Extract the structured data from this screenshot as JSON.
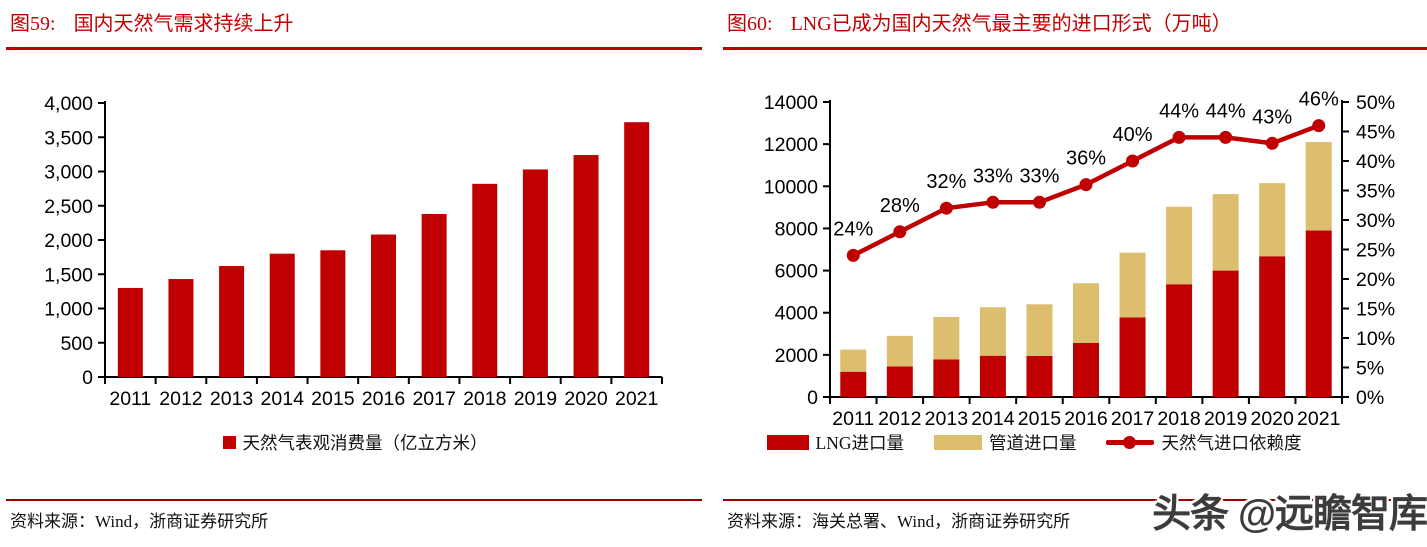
{
  "colors": {
    "bar_red": "#C00000",
    "bar_tan": "#DCBE6E",
    "line_red": "#C00000",
    "title_red": "#C30000",
    "title_rule": "#C00000",
    "bottom_rule": "#990000",
    "axis_black": "#000000",
    "watermark_gray": "#3C3C3C"
  },
  "left_panel": {
    "figure_label": "图59:",
    "title": "国内天然气需求持续上升",
    "legend": [
      {
        "label": "天然气表观消费量（亿立方米）",
        "swatch": "red-square"
      }
    ],
    "source_label": "资料来源：",
    "source_text": "Wind，浙商证券研究所"
  },
  "right_panel": {
    "figure_label": "图60:",
    "title": "LNG已成为国内天然气最主要的进口形式（万吨）",
    "legend": [
      {
        "label": "LNG进口量",
        "swatch": "red-bar"
      },
      {
        "label": "管道进口量",
        "swatch": "tan-bar"
      },
      {
        "label": "天然气进口依赖度",
        "swatch": "red-line-dot"
      }
    ],
    "source_label": "资料来源：",
    "source_text": "海关总署、Wind，浙商证券研究所"
  },
  "watermark": "头条 @远瞻智库",
  "chart_data": [
    {
      "type": "bar",
      "title": "国内天然气需求持续上升",
      "categories": [
        "2011",
        "2012",
        "2013",
        "2014",
        "2015",
        "2016",
        "2017",
        "2018",
        "2019",
        "2020",
        "2021"
      ],
      "series": [
        {
          "name": "天然气表观消费量（亿立方米）",
          "color": "#C00000",
          "values": [
            1300,
            1430,
            1620,
            1800,
            1850,
            2080,
            2380,
            2820,
            3030,
            3240,
            3720
          ]
        }
      ],
      "xlabel": "",
      "ylabel": "",
      "ylim": [
        0,
        4000
      ],
      "yticks": [
        {
          "v": 0,
          "label": "0"
        },
        {
          "v": 500,
          "label": "500"
        },
        {
          "v": 1000,
          "label": "1,000"
        },
        {
          "v": 1500,
          "label": "1,500"
        },
        {
          "v": 2000,
          "label": "2,000"
        },
        {
          "v": 2500,
          "label": "2,500"
        },
        {
          "v": 3000,
          "label": "3,000"
        },
        {
          "v": 3500,
          "label": "3,500"
        },
        {
          "v": 4000,
          "label": "4,000"
        }
      ],
      "grid": false,
      "legend_position": "bottom"
    },
    {
      "type": "bar+line",
      "title": "LNG已成为国内天然气最主要的进口形式（万吨）",
      "categories": [
        "2011",
        "2012",
        "2013",
        "2014",
        "2015",
        "2016",
        "2017",
        "2018",
        "2019",
        "2020",
        "2021"
      ],
      "series": [
        {
          "name": "LNG进口量",
          "type": "bar",
          "stack": "imports",
          "color": "#C00000",
          "values": [
            1200,
            1450,
            1780,
            1960,
            1950,
            2570,
            3780,
            5350,
            6000,
            6680,
            7900
          ]
        },
        {
          "name": "管道进口量",
          "type": "bar",
          "stack": "imports",
          "color": "#DCBE6E",
          "values": [
            1050,
            1450,
            2020,
            2300,
            2450,
            2830,
            3070,
            3680,
            3630,
            3470,
            4200
          ]
        },
        {
          "name": "天然气进口依赖度",
          "type": "line",
          "axis": "right",
          "color": "#C00000",
          "values": [
            24,
            28,
            32,
            33,
            33,
            36,
            40,
            44,
            44,
            43,
            46
          ],
          "point_labels": [
            "24%",
            "28%",
            "32%",
            "33%",
            "33%",
            "36%",
            "40%",
            "44%",
            "44%",
            "43%",
            "46%"
          ]
        }
      ],
      "ylim_left": [
        0,
        14000
      ],
      "ylim_right": [
        0,
        50
      ],
      "yticks_left": [
        {
          "v": 0,
          "label": "0"
        },
        {
          "v": 2000,
          "label": "2000"
        },
        {
          "v": 4000,
          "label": "4000"
        },
        {
          "v": 6000,
          "label": "6000"
        },
        {
          "v": 8000,
          "label": "8000"
        },
        {
          "v": 10000,
          "label": "10000"
        },
        {
          "v": 12000,
          "label": "12000"
        },
        {
          "v": 14000,
          "label": "14000"
        }
      ],
      "yticks_right": [
        {
          "v": 0,
          "label": "0%"
        },
        {
          "v": 5,
          "label": "5%"
        },
        {
          "v": 10,
          "label": "10%"
        },
        {
          "v": 15,
          "label": "15%"
        },
        {
          "v": 20,
          "label": "20%"
        },
        {
          "v": 25,
          "label": "25%"
        },
        {
          "v": 30,
          "label": "30%"
        },
        {
          "v": 35,
          "label": "35%"
        },
        {
          "v": 40,
          "label": "40%"
        },
        {
          "v": 45,
          "label": "45%"
        },
        {
          "v": 50,
          "label": "50%"
        }
      ],
      "grid": false,
      "legend_position": "bottom"
    }
  ]
}
